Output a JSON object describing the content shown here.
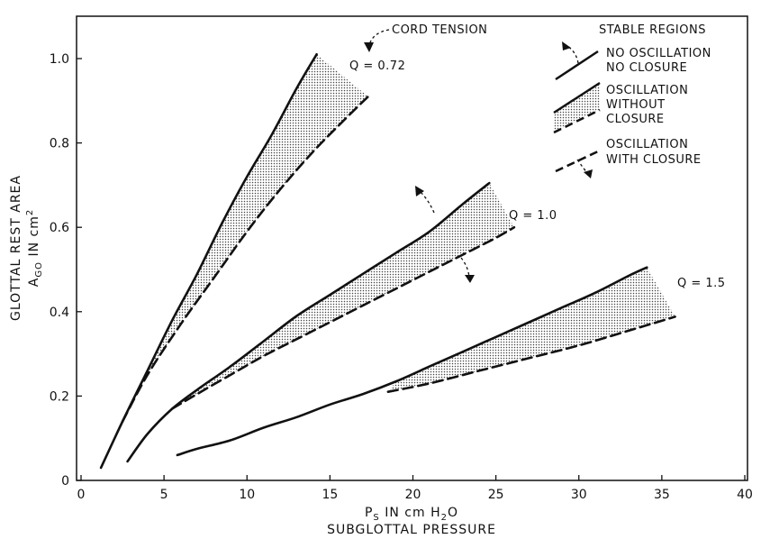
{
  "chart_data": {
    "type": "line",
    "xlabel_line1": "P",
    "xlabel_sub": "S",
    "xlabel_rest": " IN cm H",
    "xlabel_sub2": "2",
    "xlabel_end": "O",
    "xlabel_line2": "SUBGLOTTAL PRESSURE",
    "ylabel_line1": "GLOTTAL REST AREA",
    "ylabel_A": "A",
    "ylabel_sub": "GO",
    "ylabel_unit": " IN cm",
    "ylabel_sup": "2",
    "xlim": [
      0,
      40
    ],
    "ylim": [
      0,
      1.1
    ],
    "xticks": [
      "0",
      "5",
      "10",
      "15",
      "20",
      "25",
      "30",
      "35",
      "40"
    ],
    "yticks": [
      "0",
      "0.2",
      "0.4",
      "0.6",
      "0.8",
      "1.0"
    ],
    "curve_labels": [
      "Q = 0.72",
      "Q = 1.0",
      "Q = 1.5"
    ],
    "series": [
      {
        "group": "Q = 0.72",
        "style": "solid",
        "points": [
          [
            1.2,
            0.03
          ],
          [
            2.5,
            0.14
          ],
          [
            4,
            0.26
          ],
          [
            5.5,
            0.38
          ],
          [
            7,
            0.49
          ],
          [
            8.5,
            0.61
          ],
          [
            10,
            0.72
          ],
          [
            11.5,
            0.82
          ],
          [
            13,
            0.93
          ],
          [
            14.2,
            1.01
          ]
        ]
      },
      {
        "group": "Q = 0.72",
        "style": "dashed",
        "points": [
          [
            2.5,
            0.14
          ],
          [
            4,
            0.25
          ],
          [
            6,
            0.37
          ],
          [
            8,
            0.48
          ],
          [
            10,
            0.59
          ],
          [
            12,
            0.69
          ],
          [
            14,
            0.78
          ],
          [
            16,
            0.86
          ],
          [
            17.3,
            0.91
          ]
        ]
      },
      {
        "group": "Q = 1.0",
        "style": "solid",
        "points": [
          [
            2.8,
            0.045
          ],
          [
            4,
            0.11
          ],
          [
            5.5,
            0.17
          ],
          [
            7,
            0.215
          ],
          [
            9,
            0.27
          ],
          [
            11,
            0.33
          ],
          [
            13,
            0.39
          ],
          [
            15,
            0.44
          ],
          [
            17,
            0.49
          ],
          [
            19,
            0.54
          ],
          [
            21,
            0.59
          ],
          [
            23,
            0.655
          ],
          [
            24.6,
            0.705
          ]
        ]
      },
      {
        "group": "Q = 1.0",
        "style": "dashed",
        "points": [
          [
            5.5,
            0.17
          ],
          [
            7,
            0.205
          ],
          [
            9,
            0.25
          ],
          [
            11,
            0.295
          ],
          [
            13,
            0.335
          ],
          [
            15,
            0.375
          ],
          [
            17,
            0.415
          ],
          [
            19,
            0.455
          ],
          [
            21,
            0.495
          ],
          [
            23,
            0.535
          ],
          [
            25,
            0.575
          ],
          [
            26.1,
            0.6
          ]
        ]
      },
      {
        "group": "Q = 1.5",
        "style": "solid",
        "points": [
          [
            5.8,
            0.06
          ],
          [
            7,
            0.075
          ],
          [
            9,
            0.095
          ],
          [
            11,
            0.125
          ],
          [
            13,
            0.15
          ],
          [
            15,
            0.18
          ],
          [
            17,
            0.205
          ],
          [
            19,
            0.235
          ],
          [
            21,
            0.27
          ],
          [
            23,
            0.305
          ],
          [
            25,
            0.34
          ],
          [
            27,
            0.375
          ],
          [
            29,
            0.41
          ],
          [
            31,
            0.445
          ],
          [
            33,
            0.485
          ],
          [
            34.1,
            0.505
          ]
        ]
      },
      {
        "group": "Q = 1.5",
        "style": "dashed",
        "points": [
          [
            18.5,
            0.21
          ],
          [
            21,
            0.23
          ],
          [
            24,
            0.26
          ],
          [
            27,
            0.29
          ],
          [
            30,
            0.32
          ],
          [
            33,
            0.355
          ],
          [
            35.8,
            0.388
          ]
        ]
      }
    ],
    "annotation_cord": "CORD TENSION",
    "legend": {
      "title": "STABLE REGIONS",
      "items": [
        {
          "style": "solid",
          "lines": [
            "NO OSCILLATION",
            "NO CLOSURE"
          ]
        },
        {
          "style": "band",
          "lines": [
            "OSCILLATION",
            "WITHOUT",
            "CLOSURE"
          ]
        },
        {
          "style": "dashed",
          "lines": [
            "OSCILLATION",
            "WITH CLOSURE"
          ]
        }
      ]
    }
  }
}
